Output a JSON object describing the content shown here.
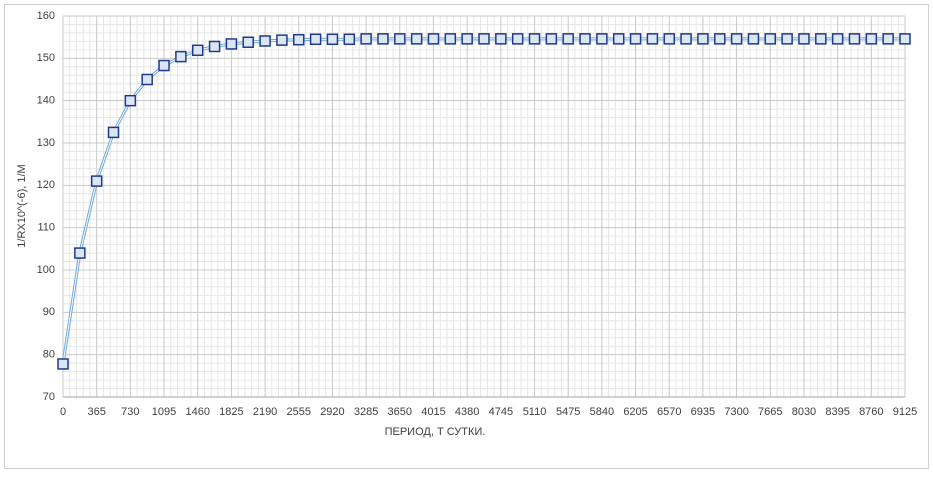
{
  "chart_data": {
    "type": "line",
    "x_label": "ПЕРИОД, Т СУТКИ.",
    "y_label": "1/RX10^(-6), 1/M",
    "x": [
      0,
      182.5,
      365,
      547.5,
      730,
      912.5,
      1095,
      1277.5,
      1460,
      1642.5,
      1825,
      2007.5,
      2190,
      2372.5,
      2555,
      2737.5,
      2920,
      3102.5,
      3285,
      3467.5,
      3650,
      3832.5,
      4015,
      4197.5,
      4380,
      4562.5,
      4745,
      4927.5,
      5110,
      5292.5,
      5475,
      5657.5,
      5840,
      6022.5,
      6205,
      6387.5,
      6570,
      6752.5,
      6935,
      7117.5,
      7300,
      7482.5,
      7665,
      7847.5,
      8030,
      8212.5,
      8395,
      8577.5,
      8760,
      8942.5,
      9125
    ],
    "series": [
      {
        "color": "#1f3a8a",
        "line_color": "#6fa8dc",
        "values": [
          77.8,
          104.0,
          121.0,
          132.5,
          140.0,
          145.0,
          148.3,
          150.4,
          151.9,
          152.8,
          153.4,
          153.8,
          154.1,
          154.3,
          154.4,
          154.5,
          154.5,
          154.5,
          154.6,
          154.6,
          154.6,
          154.6,
          154.6,
          154.6,
          154.6,
          154.6,
          154.6,
          154.6,
          154.6,
          154.6,
          154.6,
          154.6,
          154.6,
          154.6,
          154.6,
          154.6,
          154.6,
          154.6,
          154.6,
          154.6,
          154.6,
          154.6,
          154.6,
          154.6,
          154.6,
          154.6,
          154.6,
          154.6,
          154.6,
          154.6,
          154.6
        ]
      }
    ],
    "xlim": [
      0,
      9125
    ],
    "xticks": [
      0,
      365,
      730,
      1095,
      1460,
      1825,
      2190,
      2555,
      2920,
      3285,
      3650,
      4015,
      4380,
      4745,
      5110,
      5475,
      5840,
      6205,
      6570,
      6935,
      7300,
      7665,
      8030,
      8395,
      8760,
      9125
    ],
    "ylim": [
      70,
      160
    ],
    "yticks": [
      70,
      80,
      90,
      100,
      110,
      120,
      130,
      140,
      150,
      160
    ],
    "grid": true,
    "minor_divisions": 5
  }
}
